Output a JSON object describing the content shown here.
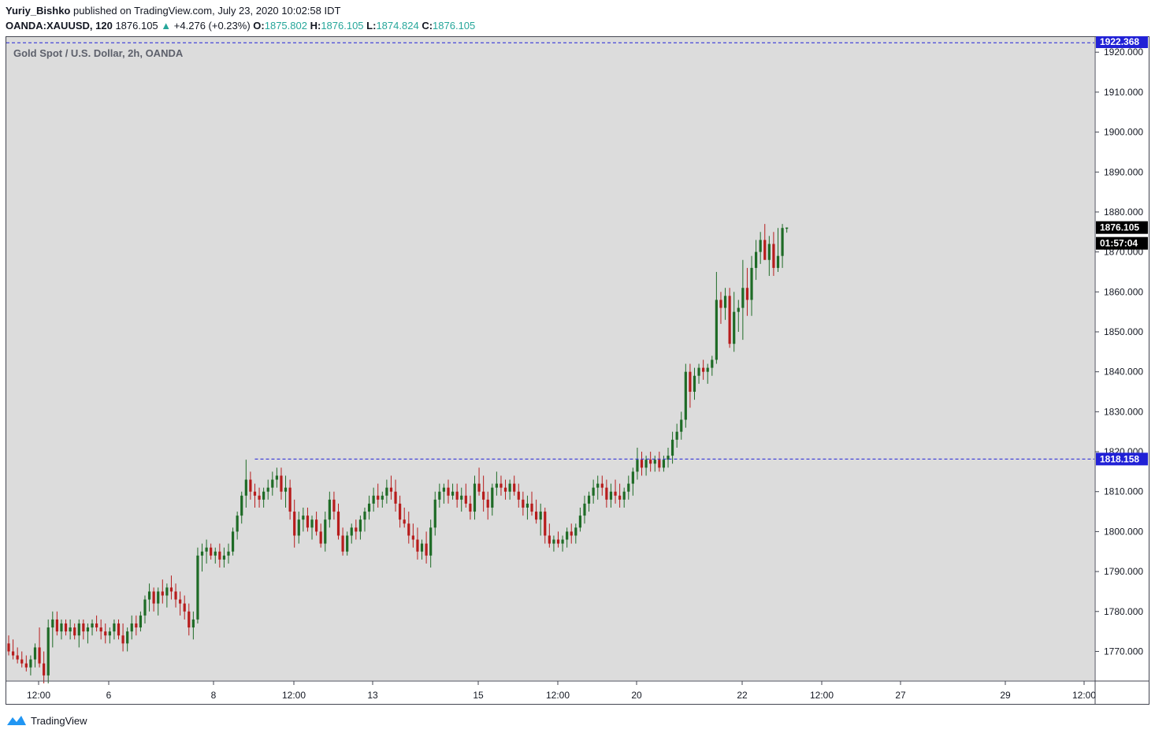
{
  "header": {
    "author": "Yuriy_Bishko",
    "published_text": "published on TradingView.com, July 23, 2020 10:02:58 IDT",
    "symbol": "OANDA:XAUUSD, 120",
    "last": "1876.105",
    "change": "+4.276 (+0.23%)",
    "o_label": "O:",
    "o_value": "1875.802",
    "h_label": "H:",
    "h_value": "1876.105",
    "l_label": "L:",
    "l_value": "1874.824",
    "c_label": "C:",
    "c_value": "1876.105"
  },
  "footer": {
    "brand": "TradingView"
  },
  "colors": {
    "up": "#1e6b26",
    "down": "#b71c1c",
    "pane_bg": "#dcdcdc",
    "level_line": "#2121d6",
    "accent": "#26a69a"
  },
  "chart_data": {
    "type": "candlestick",
    "title": "Gold Spot / U.S. Dollar, 2h, OANDA",
    "y_ticks": [
      1770,
      1780,
      1790,
      1800,
      1810,
      1820,
      1830,
      1840,
      1850,
      1860,
      1870,
      1880,
      1890,
      1900,
      1910,
      1920
    ],
    "y_tick_labels": [
      "1770.000",
      "1780.000",
      "1790.000",
      "1800.000",
      "1810.000",
      "1820.000",
      "1830.000",
      "1840.000",
      "1850.000",
      "1860.000",
      "1870.000",
      "1880.000",
      "1890.000",
      "1900.000",
      "1910.000",
      "1920.000"
    ],
    "ylim": [
      1762,
      1923
    ],
    "x_labels": [
      "12:00",
      "6",
      "8",
      "12:00",
      "13",
      "15",
      "12:00",
      "20",
      "22",
      "12:00",
      "27",
      "29",
      "12:00"
    ],
    "levels": [
      {
        "value": 1922.368,
        "label": "1922.368"
      },
      {
        "value": 1818.158,
        "label": "1818.158"
      }
    ],
    "price_label": "1876.105",
    "countdown": "01:57:04",
    "candles": [
      [
        1772,
        1774,
        1769,
        1770
      ],
      [
        1770,
        1773,
        1768,
        1769
      ],
      [
        1769,
        1771,
        1767,
        1768
      ],
      [
        1768,
        1770,
        1766,
        1767
      ],
      [
        1767,
        1769,
        1765,
        1766
      ],
      [
        1766,
        1769,
        1764,
        1768
      ],
      [
        1768,
        1772,
        1766,
        1771
      ],
      [
        1771,
        1776,
        1766,
        1767
      ],
      [
        1767,
        1770,
        1762,
        1764
      ],
      [
        1764,
        1778,
        1762,
        1776
      ],
      [
        1776,
        1780,
        1771,
        1778
      ],
      [
        1778,
        1780,
        1774,
        1775
      ],
      [
        1775,
        1778,
        1773,
        1777
      ],
      [
        1777,
        1778,
        1774,
        1775
      ],
      [
        1775,
        1778,
        1773,
        1776
      ],
      [
        1776,
        1777,
        1773,
        1774
      ],
      [
        1774,
        1778,
        1771,
        1777
      ],
      [
        1777,
        1778,
        1773,
        1775
      ],
      [
        1775,
        1777,
        1772,
        1776
      ],
      [
        1776,
        1778,
        1774,
        1777
      ],
      [
        1777,
        1779,
        1775,
        1776
      ],
      [
        1776,
        1778,
        1773,
        1775
      ],
      [
        1775,
        1777,
        1772,
        1774
      ],
      [
        1774,
        1776,
        1772,
        1775
      ],
      [
        1775,
        1778,
        1773,
        1777
      ],
      [
        1777,
        1778,
        1773,
        1774
      ],
      [
        1774,
        1777,
        1770,
        1772
      ],
      [
        1772,
        1776,
        1770,
        1775
      ],
      [
        1775,
        1779,
        1773,
        1777
      ],
      [
        1777,
        1779,
        1774,
        1776
      ],
      [
        1776,
        1780,
        1775,
        1779
      ],
      [
        1779,
        1784,
        1777,
        1783
      ],
      [
        1783,
        1787,
        1780,
        1785
      ],
      [
        1785,
        1786,
        1780,
        1782
      ],
      [
        1782,
        1786,
        1779,
        1785
      ],
      [
        1785,
        1788,
        1782,
        1784
      ],
      [
        1784,
        1787,
        1781,
        1786
      ],
      [
        1786,
        1789,
        1783,
        1785
      ],
      [
        1785,
        1787,
        1781,
        1783
      ],
      [
        1783,
        1785,
        1779,
        1782
      ],
      [
        1782,
        1784,
        1778,
        1780
      ],
      [
        1780,
        1782,
        1774,
        1776
      ],
      [
        1776,
        1780,
        1773,
        1778
      ],
      [
        1778,
        1796,
        1777,
        1794
      ],
      [
        1794,
        1797,
        1790,
        1795
      ],
      [
        1795,
        1798,
        1792,
        1796
      ],
      [
        1796,
        1797,
        1793,
        1794
      ],
      [
        1794,
        1796,
        1792,
        1795
      ],
      [
        1795,
        1797,
        1791,
        1793
      ],
      [
        1793,
        1796,
        1791,
        1794
      ],
      [
        1794,
        1797,
        1792,
        1795
      ],
      [
        1795,
        1801,
        1794,
        1800
      ],
      [
        1800,
        1805,
        1798,
        1804
      ],
      [
        1804,
        1810,
        1802,
        1809
      ],
      [
        1809,
        1818,
        1806,
        1813
      ],
      [
        1813,
        1815,
        1808,
        1810
      ],
      [
        1810,
        1812,
        1806,
        1809
      ],
      [
        1809,
        1811,
        1806,
        1808
      ],
      [
        1808,
        1811,
        1806,
        1810
      ],
      [
        1810,
        1813,
        1808,
        1811
      ],
      [
        1811,
        1815,
        1809,
        1813
      ],
      [
        1813,
        1816,
        1811,
        1814
      ],
      [
        1814,
        1816,
        1808,
        1810
      ],
      [
        1810,
        1814,
        1806,
        1811
      ],
      [
        1811,
        1813,
        1803,
        1805
      ],
      [
        1805,
        1808,
        1796,
        1799
      ],
      [
        1799,
        1805,
        1797,
        1803
      ],
      [
        1803,
        1806,
        1800,
        1804
      ],
      [
        1804,
        1806,
        1800,
        1801
      ],
      [
        1801,
        1804,
        1798,
        1803
      ],
      [
        1803,
        1805,
        1799,
        1800
      ],
      [
        1800,
        1802,
        1796,
        1797
      ],
      [
        1797,
        1805,
        1795,
        1803
      ],
      [
        1803,
        1810,
        1801,
        1808
      ],
      [
        1808,
        1810,
        1803,
        1805
      ],
      [
        1805,
        1807,
        1798,
        1799
      ],
      [
        1799,
        1801,
        1794,
        1795
      ],
      [
        1795,
        1800,
        1794,
        1799
      ],
      [
        1799,
        1802,
        1797,
        1801
      ],
      [
        1801,
        1803,
        1798,
        1800
      ],
      [
        1800,
        1804,
        1798,
        1803
      ],
      [
        1803,
        1806,
        1800,
        1805
      ],
      [
        1805,
        1809,
        1803,
        1807
      ],
      [
        1807,
        1811,
        1805,
        1809
      ],
      [
        1809,
        1812,
        1806,
        1808
      ],
      [
        1808,
        1810,
        1806,
        1809
      ],
      [
        1809,
        1813,
        1807,
        1811
      ],
      [
        1811,
        1814,
        1808,
        1810
      ],
      [
        1810,
        1813,
        1805,
        1807
      ],
      [
        1807,
        1809,
        1801,
        1803
      ],
      [
        1803,
        1806,
        1801,
        1802
      ],
      [
        1802,
        1805,
        1797,
        1799
      ],
      [
        1799,
        1802,
        1796,
        1798
      ],
      [
        1798,
        1801,
        1793,
        1795
      ],
      [
        1795,
        1798,
        1793,
        1797
      ],
      [
        1797,
        1800,
        1792,
        1794
      ],
      [
        1794,
        1803,
        1791,
        1801
      ],
      [
        1801,
        1810,
        1799,
        1808
      ],
      [
        1808,
        1812,
        1806,
        1810
      ],
      [
        1810,
        1812,
        1807,
        1811
      ],
      [
        1811,
        1813,
        1807,
        1809
      ],
      [
        1809,
        1812,
        1808,
        1810
      ],
      [
        1810,
        1812,
        1806,
        1808
      ],
      [
        1808,
        1811,
        1805,
        1809
      ],
      [
        1809,
        1812,
        1806,
        1807
      ],
      [
        1807,
        1809,
        1803,
        1805
      ],
      [
        1805,
        1814,
        1803,
        1812
      ],
      [
        1812,
        1816,
        1809,
        1810
      ],
      [
        1810,
        1814,
        1805,
        1808
      ],
      [
        1808,
        1810,
        1803,
        1806
      ],
      [
        1806,
        1812,
        1804,
        1811
      ],
      [
        1811,
        1815,
        1809,
        1812
      ],
      [
        1812,
        1814,
        1809,
        1811
      ],
      [
        1811,
        1813,
        1808,
        1810
      ],
      [
        1810,
        1813,
        1808,
        1812
      ],
      [
        1812,
        1814,
        1809,
        1810
      ],
      [
        1810,
        1812,
        1806,
        1808
      ],
      [
        1808,
        1810,
        1804,
        1806
      ],
      [
        1806,
        1809,
        1803,
        1807
      ],
      [
        1807,
        1810,
        1804,
        1805
      ],
      [
        1805,
        1808,
        1802,
        1803
      ],
      [
        1803,
        1807,
        1799,
        1805
      ],
      [
        1805,
        1806,
        1797,
        1799
      ],
      [
        1799,
        1802,
        1796,
        1797
      ],
      [
        1797,
        1799,
        1795,
        1798
      ],
      [
        1798,
        1800,
        1796,
        1797
      ],
      [
        1797,
        1799,
        1795,
        1798
      ],
      [
        1798,
        1801,
        1796,
        1800
      ],
      [
        1800,
        1802,
        1797,
        1799
      ],
      [
        1799,
        1802,
        1797,
        1801
      ],
      [
        1801,
        1806,
        1800,
        1804
      ],
      [
        1804,
        1809,
        1802,
        1807
      ],
      [
        1807,
        1810,
        1805,
        1809
      ],
      [
        1809,
        1813,
        1807,
        1811
      ],
      [
        1811,
        1814,
        1808,
        1812
      ],
      [
        1812,
        1814,
        1809,
        1811
      ],
      [
        1811,
        1813,
        1806,
        1808
      ],
      [
        1808,
        1812,
        1806,
        1810
      ],
      [
        1810,
        1813,
        1807,
        1809
      ],
      [
        1809,
        1812,
        1806,
        1808
      ],
      [
        1808,
        1811,
        1806,
        1810
      ],
      [
        1810,
        1814,
        1808,
        1812
      ],
      [
        1812,
        1816,
        1809,
        1815
      ],
      [
        1815,
        1821,
        1813,
        1818
      ],
      [
        1818,
        1820,
        1814,
        1816
      ],
      [
        1816,
        1819,
        1814,
        1818
      ],
      [
        1818,
        1820,
        1815,
        1817
      ],
      [
        1817,
        1819,
        1815,
        1818
      ],
      [
        1818,
        1820,
        1815,
        1816
      ],
      [
        1816,
        1819,
        1815,
        1818
      ],
      [
        1818,
        1821,
        1816,
        1819
      ],
      [
        1819,
        1825,
        1817,
        1823
      ],
      [
        1823,
        1827,
        1821,
        1825
      ],
      [
        1825,
        1830,
        1823,
        1828
      ],
      [
        1828,
        1842,
        1826,
        1840
      ],
      [
        1840,
        1842,
        1831,
        1835
      ],
      [
        1835,
        1841,
        1833,
        1839
      ],
      [
        1839,
        1842,
        1837,
        1841
      ],
      [
        1841,
        1843,
        1838,
        1840
      ],
      [
        1840,
        1842,
        1837,
        1841
      ],
      [
        1841,
        1844,
        1839,
        1843
      ],
      [
        1843,
        1865,
        1842,
        1858
      ],
      [
        1858,
        1860,
        1852,
        1856
      ],
      [
        1856,
        1861,
        1853,
        1859
      ],
      [
        1859,
        1861,
        1846,
        1847
      ],
      [
        1847,
        1860,
        1845,
        1855
      ],
      [
        1855,
        1858,
        1850,
        1856
      ],
      [
        1856,
        1868,
        1848,
        1861
      ],
      [
        1861,
        1866,
        1854,
        1858
      ],
      [
        1858,
        1869,
        1854,
        1866
      ],
      [
        1866,
        1873,
        1863,
        1870
      ],
      [
        1870,
        1875,
        1867,
        1873
      ],
      [
        1873,
        1877,
        1869,
        1868
      ],
      [
        1868,
        1874,
        1864,
        1872
      ],
      [
        1872,
        1875,
        1864,
        1866
      ],
      [
        1866,
        1876,
        1865,
        1869
      ],
      [
        1869,
        1877,
        1866,
        1876
      ],
      [
        1875.802,
        1876.105,
        1874.824,
        1876.105
      ]
    ]
  }
}
